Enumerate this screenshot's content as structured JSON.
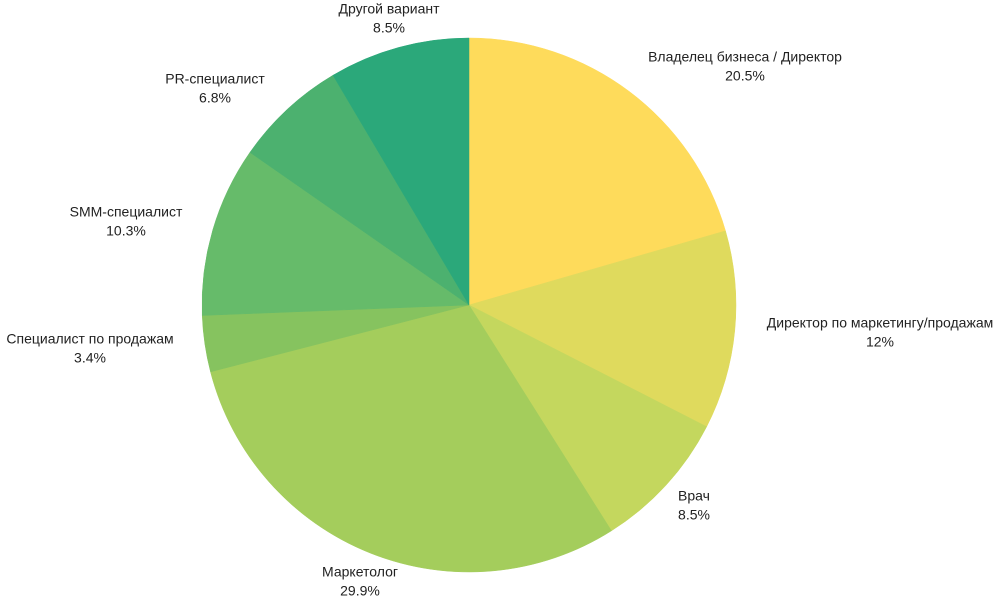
{
  "chart_data": {
    "type": "pie",
    "start_angle_deg": 0,
    "direction": "clockwise",
    "legend": "none",
    "slices": [
      {
        "label": "Владелец бизнеса / Директор",
        "value": 20.5,
        "value_label": "20.5%",
        "color": "#FEDB5B"
      },
      {
        "label": "Директор по маркетингу/продажам",
        "value": 12,
        "value_label": "12%",
        "color": "#DFDA5D"
      },
      {
        "label": "Врач",
        "value": 8.5,
        "value_label": "8.5%",
        "color": "#C4D75E"
      },
      {
        "label": "Маркетолог",
        "value": 29.9,
        "value_label": "29.9%",
        "color": "#A4CD5C"
      },
      {
        "label": "Специалист по продажам",
        "value": 3.4,
        "value_label": "3.4%",
        "color": "#86C35F"
      },
      {
        "label": "SMM-специалист",
        "value": 10.3,
        "value_label": "10.3%",
        "color": "#66BB6A"
      },
      {
        "label": "PR-специалист",
        "value": 6.8,
        "value_label": "6.8%",
        "color": "#4CB16F"
      },
      {
        "label": "Другой вариант",
        "value": 8.5,
        "value_label": "8.5%",
        "color": "#2BA87A"
      }
    ]
  }
}
